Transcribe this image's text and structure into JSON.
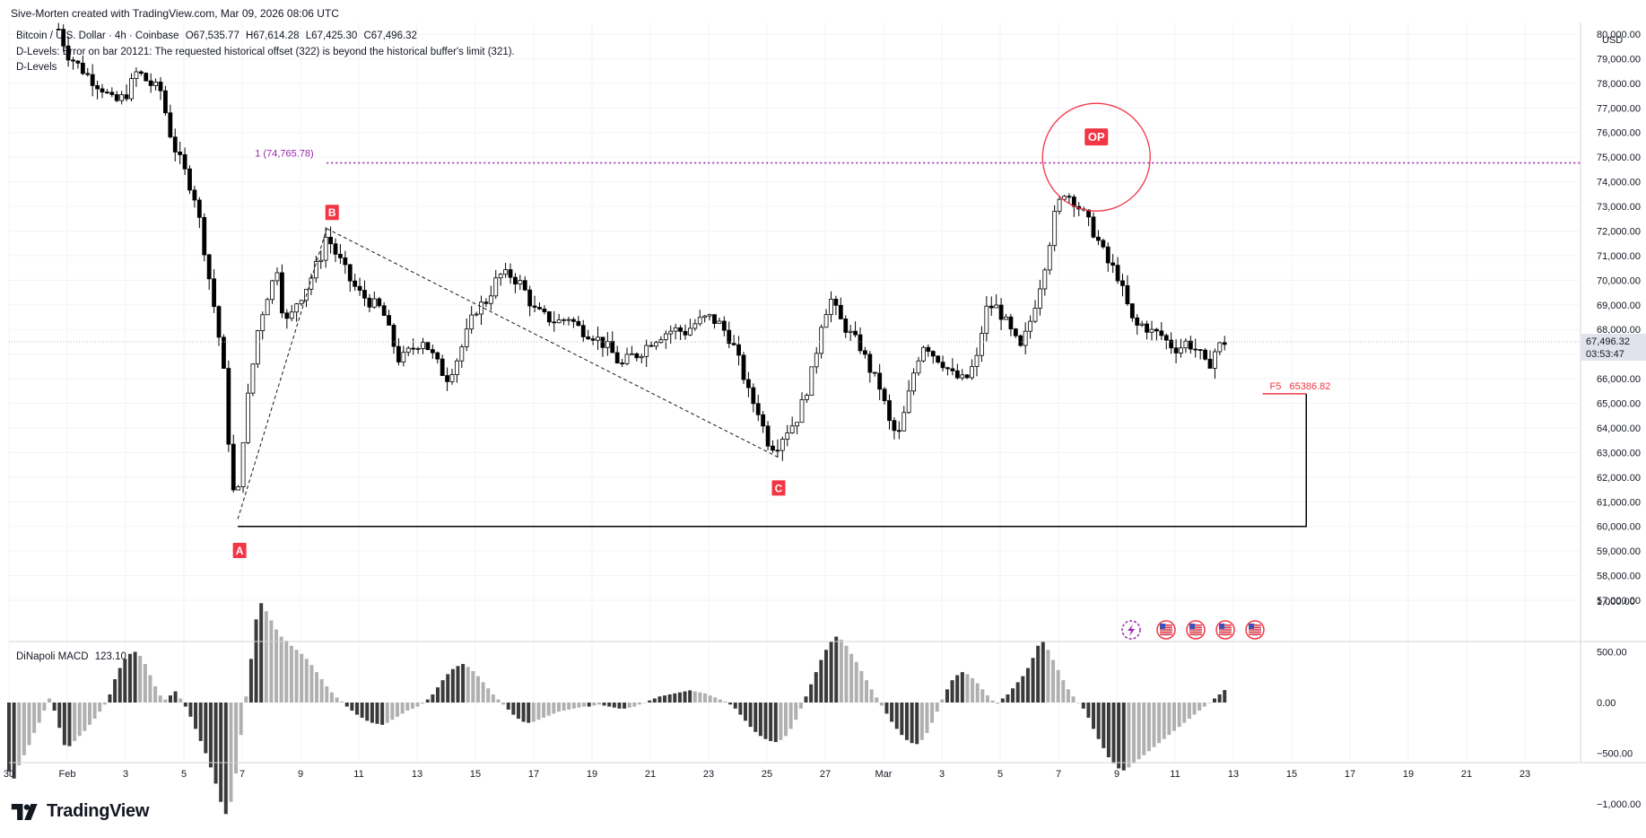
{
  "header": {
    "credit": "Sive-Morten created with TradingView.com, Mar 09, 2026 08:06 UTC",
    "symbol": "Bitcoin / U.S. Dollar · 4h · Coinbase",
    "ohlc": {
      "o": "O67,535.77",
      "h": "H67,614.28",
      "l": "L67,425.30",
      "c": "C67,496.32"
    },
    "error_line": "D-Levels: Error on bar 20121: The requested historical offset (322) is beyond the historical buffer's limit (321).",
    "indicator_line": "D-Levels"
  },
  "price_axis": {
    "currency": "USD",
    "ticks": [
      "80,000.00",
      "79,000.00",
      "78,000.00",
      "77,000.00",
      "76,000.00",
      "75,000.00",
      "74,000.00",
      "73,000.00",
      "72,000.00",
      "71,000.00",
      "70,000.00",
      "69,000.00",
      "68,000.00",
      "67,000.00",
      "66,000.00",
      "65,000.00",
      "64,000.00",
      "63,000.00",
      "62,000.00",
      "61,000.00",
      "60,000.00",
      "59,000.00",
      "58,000.00",
      "57,000.00"
    ],
    "last_price_label": "67,496.32",
    "countdown_label": "03:53:47"
  },
  "macd_axis": {
    "ticks": [
      "1,000.00",
      "500.00",
      "0.00",
      "−500.00",
      "−1,000.00"
    ]
  },
  "macd": {
    "label": "DiNapoli MACD",
    "value": "123.10"
  },
  "time_axis": {
    "labels": [
      "30",
      "Feb",
      "3",
      "5",
      "7",
      "9",
      "11",
      "13",
      "15",
      "17",
      "19",
      "21",
      "23",
      "25",
      "27",
      "Mar",
      "3",
      "5",
      "7",
      "9",
      "11",
      "13",
      "15",
      "17",
      "19",
      "21",
      "23"
    ]
  },
  "annotations": {
    "level_label": "1 (74,765.78)",
    "op_label": "OP",
    "f5_label": "F5",
    "f5_value": "65386.82",
    "point_a": "A",
    "point_b": "B",
    "point_c": "C"
  },
  "chart_data": {
    "type": "candlestick",
    "symbol": "BTCUSD",
    "timeframe": "4h",
    "ylim": [
      56600,
      81000
    ],
    "x_range_days": [
      -2,
      52.5
    ],
    "price_path": [
      [
        -0.3,
        80200
      ],
      [
        0,
        79200
      ],
      [
        0.4,
        78700
      ],
      [
        0.8,
        78200
      ],
      [
        1.2,
        77800
      ],
      [
        1.6,
        77200
      ],
      [
        2,
        77500
      ],
      [
        2.4,
        78500
      ],
      [
        2.8,
        78000
      ],
      [
        3.2,
        77700
      ],
      [
        3.6,
        75600
      ],
      [
        4,
        74500
      ],
      [
        4.4,
        73300
      ],
      [
        4.6,
        72000
      ],
      [
        4.85,
        70200
      ],
      [
        5.1,
        68500
      ],
      [
        5.35,
        66500
      ],
      [
        5.5,
        64000
      ],
      [
        5.65,
        61800
      ],
      [
        5.8,
        60600
      ],
      [
        5.95,
        62500
      ],
      [
        6.1,
        64500
      ],
      [
        6.3,
        66000
      ],
      [
        6.5,
        67800
      ],
      [
        6.8,
        69200
      ],
      [
        7.0,
        69800
      ],
      [
        7.2,
        70500
      ],
      [
        7.4,
        68600
      ],
      [
        7.6,
        68200
      ],
      [
        7.8,
        69000
      ],
      [
        8.1,
        69500
      ],
      [
        8.4,
        70200
      ],
      [
        8.7,
        71000
      ],
      [
        8.9,
        71900
      ],
      [
        9.1,
        71300
      ],
      [
        9.4,
        70700
      ],
      [
        9.7,
        70000
      ],
      [
        10,
        69500
      ],
      [
        10.4,
        69100
      ],
      [
        10.8,
        68800
      ],
      [
        11.1,
        67700
      ],
      [
        11.4,
        66700
      ],
      [
        11.8,
        67200
      ],
      [
        12.2,
        67600
      ],
      [
        12.6,
        66800
      ],
      [
        13,
        66000
      ],
      [
        13.3,
        66600
      ],
      [
        13.6,
        67500
      ],
      [
        14,
        68800
      ],
      [
        14.4,
        69200
      ],
      [
        14.8,
        70200
      ],
      [
        15.2,
        70200
      ],
      [
        15.6,
        69800
      ],
      [
        16,
        68800
      ],
      [
        16.4,
        68500
      ],
      [
        16.8,
        68300
      ],
      [
        17.2,
        68500
      ],
      [
        17.6,
        68000
      ],
      [
        18,
        67800
      ],
      [
        18.3,
        67500
      ],
      [
        18.6,
        67200
      ],
      [
        19,
        66500
      ],
      [
        19.3,
        66900
      ],
      [
        19.6,
        67000
      ],
      [
        20,
        67500
      ],
      [
        20.4,
        67800
      ],
      [
        20.8,
        68000
      ],
      [
        21.2,
        67900
      ],
      [
        21.6,
        68300
      ],
      [
        22,
        68500
      ],
      [
        22.4,
        68200
      ],
      [
        22.8,
        67500
      ],
      [
        23.1,
        66500
      ],
      [
        23.4,
        65300
      ],
      [
        23.7,
        64700
      ],
      [
        24,
        63500
      ],
      [
        24.3,
        63200
      ],
      [
        24.6,
        63800
      ],
      [
        25,
        64300
      ],
      [
        25.3,
        65300
      ],
      [
        25.6,
        66500
      ],
      [
        25.9,
        68500
      ],
      [
        26.2,
        69200
      ],
      [
        26.5,
        68400
      ],
      [
        26.8,
        67900
      ],
      [
        27.2,
        67300
      ],
      [
        27.6,
        66200
      ],
      [
        27.9,
        65600
      ],
      [
        28.2,
        64200
      ],
      [
        28.5,
        63600
      ],
      [
        28.8,
        65000
      ],
      [
        29.1,
        66600
      ],
      [
        29.4,
        67500
      ],
      [
        29.7,
        67000
      ],
      [
        30,
        66700
      ],
      [
        30.4,
        66100
      ],
      [
        30.8,
        65900
      ],
      [
        31.2,
        66800
      ],
      [
        31.5,
        68800
      ],
      [
        31.8,
        69000
      ],
      [
        32.1,
        68500
      ],
      [
        32.4,
        67800
      ],
      [
        32.7,
        67200
      ],
      [
        33,
        68200
      ],
      [
        33.3,
        69500
      ],
      [
        33.6,
        71000
      ],
      [
        33.9,
        72800
      ],
      [
        34.2,
        73600
      ],
      [
        34.5,
        73300
      ],
      [
        34.8,
        72800
      ],
      [
        35.1,
        72200
      ],
      [
        35.4,
        71500
      ],
      [
        35.7,
        70700
      ],
      [
        36,
        70300
      ],
      [
        36.3,
        69200
      ],
      [
        36.6,
        68100
      ],
      [
        36.9,
        68200
      ],
      [
        37.2,
        67900
      ],
      [
        37.5,
        67800
      ],
      [
        37.8,
        67400
      ],
      [
        38.1,
        67200
      ],
      [
        38.4,
        67500
      ],
      [
        38.8,
        67100
      ],
      [
        39.1,
        66400
      ],
      [
        39.4,
        67200
      ],
      [
        39.7,
        67500
      ]
    ],
    "drawings": {
      "horizontal_level": {
        "price": 74765.78,
        "from_day": 8.9,
        "to_day": 52.5,
        "color": "#9c27b0",
        "style": "dotted"
      },
      "abc_pattern": {
        "A": [
          5.85,
          60300
        ],
        "B": [
          8.9,
          72100
        ],
        "C": [
          24.4,
          62800
        ]
      },
      "circle": {
        "center": [
          35.3,
          75000
        ],
        "color": "#f23645"
      },
      "support_box": {
        "left_day": 5.85,
        "right_day": 42.5,
        "top": 65386.82,
        "bottom": 60000,
        "color": "#000000"
      },
      "f5_line": {
        "from_day": 41.0,
        "to_day": 42.5,
        "price": 65386.82,
        "color": "#f23645"
      }
    },
    "macd": {
      "label": "DiNapoli MACD",
      "last": 123.1,
      "ylim": [
        -1150,
        1100
      ],
      "values": [
        -680,
        -750,
        -620,
        -520,
        -420,
        -300,
        -200,
        -80,
        40,
        -80,
        -250,
        -420,
        -430,
        -380,
        -330,
        -280,
        -220,
        -160,
        -90,
        -20,
        80,
        230,
        340,
        430,
        480,
        500,
        460,
        380,
        270,
        160,
        70,
        30,
        70,
        110,
        40,
        -40,
        -140,
        -260,
        -380,
        -500,
        -640,
        -800,
        -980,
        -1100,
        -980,
        -700,
        -320,
        60,
        430,
        820,
        980,
        900,
        810,
        720,
        650,
        610,
        560,
        520,
        480,
        430,
        370,
        300,
        230,
        160,
        100,
        50,
        10,
        -40,
        -80,
        -120,
        -150,
        -180,
        -200,
        -210,
        -220,
        -200,
        -170,
        -140,
        -110,
        -80,
        -60,
        -40,
        -10,
        30,
        80,
        150,
        220,
        280,
        330,
        360,
        380,
        350,
        310,
        260,
        200,
        140,
        80,
        30,
        -20,
        -70,
        -120,
        -160,
        -190,
        -200,
        -190,
        -170,
        -150,
        -130,
        -110,
        -90,
        -80,
        -70,
        -60,
        -50,
        -40,
        -40,
        -30,
        -20,
        -30,
        -40,
        -50,
        -60,
        -60,
        -50,
        -40,
        -20,
        0,
        20,
        40,
        60,
        70,
        80,
        90,
        100,
        110,
        120,
        110,
        100,
        90,
        70,
        50,
        30,
        10,
        -20,
        -60,
        -120,
        -180,
        -240,
        -290,
        -330,
        -360,
        -380,
        -390,
        -370,
        -330,
        -260,
        -170,
        -60,
        60,
        180,
        300,
        420,
        520,
        600,
        650,
        620,
        560,
        480,
        400,
        310,
        220,
        130,
        50,
        -30,
        -110,
        -190,
        -260,
        -320,
        -370,
        -400,
        -410,
        -370,
        -300,
        -200,
        -90,
        30,
        130,
        220,
        270,
        300,
        280,
        240,
        190,
        130,
        70,
        20,
        -10,
        40,
        80,
        140,
        200,
        260,
        340,
        440,
        560,
        600,
        520,
        420,
        320,
        220,
        130,
        60,
        0,
        -60,
        -150,
        -260,
        -360,
        -450,
        -540,
        -600,
        -650,
        -670,
        -640,
        -600,
        -560,
        -520,
        -480,
        -440,
        -400,
        -360,
        -320,
        -280,
        -240,
        -200,
        -160,
        -120,
        -80,
        -40,
        0,
        40,
        80,
        123
      ]
    }
  }
}
